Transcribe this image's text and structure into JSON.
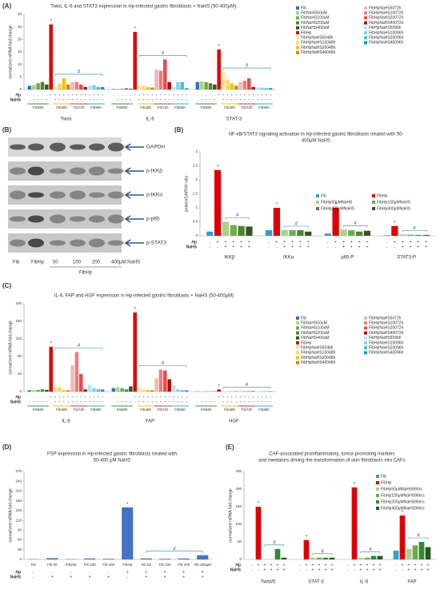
{
  "blot": {
    "panel": "(B)",
    "bands": [
      "GAPDH",
      "p-IKKβ",
      "p-IKKα",
      "p-p65",
      "p-STAT3"
    ],
    "lanes": [
      "Fib",
      "FibHp",
      "50",
      "100",
      "200",
      "400μM NaHS"
    ],
    "group_label": "FibHp"
  },
  "chart_data": [
    {
      "type": "grouped_bar",
      "panel": "(A)",
      "title": "Twist, IL-6 and STAT3 expression in Hp-infected gastric fibroblasts + NaHS (50-400μM).",
      "ylabel": "normalized mRNA fold change",
      "categories": [
        "Twist",
        "IL-6",
        "STAT-3"
      ],
      "ylim": [
        0,
        30
      ],
      "yticks": [
        0,
        5,
        10,
        15,
        20,
        25,
        30
      ],
      "series": [
        {
          "name": "Fib",
          "color": "#2e75b6",
          "values": [
            1.5,
            0.2,
            3
          ]
        },
        {
          "name": "FibNaHS50uM",
          "color": "#a9d18e",
          "values": [
            1.8,
            0.3,
            3.2
          ]
        },
        {
          "name": "FibNaHS100uM",
          "color": "#70ad47",
          "values": [
            2.5,
            0.3,
            3
          ]
        },
        {
          "name": "FibNaHS200uM",
          "color": "#548235",
          "values": [
            3,
            0.5,
            2.5
          ]
        },
        {
          "name": "FibNaHS400uM",
          "color": "#375623",
          "values": [
            2,
            0.3,
            2
          ]
        },
        {
          "name": "FibHp",
          "color": "#e00000",
          "values": [
            26,
            23,
            16
          ]
        },
        {
          "name": "FibHpNaHS5048h",
          "color": "#ffe699",
          "values": [
            1,
            1.5,
            7
          ]
        },
        {
          "name": "FibHpNaHS10048h",
          "color": "#ffd966",
          "values": [
            2.5,
            1.5,
            4
          ]
        },
        {
          "name": "FibHpNaHS20048h",
          "color": "#ffc000",
          "values": [
            4.5,
            1,
            2.5
          ]
        },
        {
          "name": "FibHpNaHS40048h",
          "color": "#bf9000",
          "values": [
            2,
            0.8,
            1.5
          ]
        },
        {
          "name": "FibHpNaHS5072h",
          "color": "#f4b6b6",
          "values": [
            3,
            8,
            3
          ]
        },
        {
          "name": "FibHpNaHS10072h",
          "color": "#ee7b7b",
          "values": [
            3,
            7.5,
            3.5
          ]
        },
        {
          "name": "FibHpNaHS20072h",
          "color": "#e84c4c",
          "values": [
            2,
            12,
            4.5
          ]
        },
        {
          "name": "FibHpNaHS40072h",
          "color": "#c00000",
          "values": [
            1,
            3,
            1
          ]
        },
        {
          "name": "FibHpNaHS5096h",
          "color": "#b4e4f4",
          "values": [
            1.5,
            1,
            0.8
          ]
        },
        {
          "name": "FibHpNaHS10096h",
          "color": "#7fd3f0",
          "values": [
            1.8,
            3,
            0.8
          ]
        },
        {
          "name": "FibHpNaHS20096h",
          "color": "#3fbfe8",
          "values": [
            1,
            3,
            0.5
          ]
        },
        {
          "name": "FibHpNaHS40096h",
          "color": "#00a0d8",
          "values": [
            1,
            0.5,
            0.6
          ]
        }
      ],
      "hp_label": "Hp",
      "nahs_label": "NaHS",
      "hp_signs": [
        "-",
        "-",
        "-",
        "-",
        "-",
        "+",
        "+",
        "+",
        "+",
        "+",
        "+",
        "+",
        "+",
        "+",
        "+",
        "+",
        "+",
        "+"
      ],
      "nahs_signs": [
        "-",
        "+",
        "+",
        "+",
        "+",
        "-",
        "+",
        "+",
        "+",
        "+",
        "+",
        "+",
        "+",
        "+",
        "+",
        "+",
        "+",
        "+"
      ],
      "subgroups": [
        "Fib96h",
        "Fib48h",
        "Fib72h",
        "Fib96h"
      ],
      "star": "*",
      "hash": "#"
    },
    {
      "type": "grouped_bar",
      "panel": "(B)",
      "title": [
        "NF-κB/STAT3 signaling activation in Hp-infected gastric fibroblasts treated with 50-",
        "400μM NaHS"
      ],
      "ylabel": "protein/GAPDH ratio",
      "categories": [
        "IKKβ",
        "IKKα",
        "p65-P",
        "STAT3-P"
      ],
      "ylim": [
        0,
        3
      ],
      "yticks": [
        0,
        0.5,
        1,
        1.5,
        2,
        2.5,
        3
      ],
      "series": [
        {
          "name": "Fib",
          "color": "#2e9fd8",
          "values": [
            0.15,
            0.2,
            0.08,
            0.02
          ]
        },
        {
          "name": "FibHp",
          "color": "#e00000",
          "values": [
            2.35,
            1,
            1,
            0.35
          ]
        },
        {
          "name": "FibHp50μMNaHS",
          "color": "#a9d18e",
          "values": [
            0.5,
            0.2,
            0.22,
            0.05
          ]
        },
        {
          "name": "FibHp100μMNaHS",
          "color": "#70ad47",
          "values": [
            0.38,
            0.2,
            0.2,
            0.04
          ]
        },
        {
          "name": "FibHp200μMNaHS",
          "color": "#548235",
          "values": [
            0.35,
            0.2,
            0.15,
            0.03
          ]
        },
        {
          "name": "FibHp400μMNaHS",
          "color": "#375623",
          "values": [
            0.33,
            0.15,
            0.18,
            0.03
          ]
        }
      ],
      "hp_label": "Hp",
      "nahs_label": "NaHS",
      "hp_signs": [
        "-",
        "+",
        "+",
        "+",
        "+",
        "+"
      ],
      "nahs_signs": [
        "-",
        "-",
        "+",
        "+",
        "+",
        "+"
      ],
      "star": "*",
      "hash": "#"
    },
    {
      "type": "grouped_bar",
      "panel": "(C)",
      "title": "IL-8, FAP and HGF expression in Hp-infected gastric fibroblasts + NaHS (50-400μM)",
      "ylabel": "normalized mRNA fold change",
      "categories": [
        "IL-8",
        "FAP",
        "HGF"
      ],
      "ylim": [
        0,
        200
      ],
      "yticks": [
        0,
        40,
        80,
        120,
        160,
        200
      ],
      "series": [
        {
          "name": "Fib",
          "color": "#2e75b6",
          "values": [
            3,
            8,
            0.5
          ]
        },
        {
          "name": "FibNaHS50uM",
          "color": "#a9d18e",
          "values": [
            3,
            10,
            0.5
          ]
        },
        {
          "name": "FibNaHS100uM",
          "color": "#70ad47",
          "values": [
            4,
            8,
            0.5
          ]
        },
        {
          "name": "FibNaHS200uM",
          "color": "#548235",
          "values": [
            5,
            5,
            0.5
          ]
        },
        {
          "name": "FibNaHS400uM",
          "color": "#375623",
          "values": [
            4,
            12,
            0.5
          ]
        },
        {
          "name": "FibHp",
          "color": "#e00000",
          "values": [
            102,
            180,
            5
          ]
        },
        {
          "name": "FibHpNaHS5048h",
          "color": "#ffe699",
          "values": [
            12,
            8,
            1
          ]
        },
        {
          "name": "FibHpNaHS10048h",
          "color": "#ffd966",
          "values": [
            10,
            5,
            1
          ]
        },
        {
          "name": "FibHpNaHS20048h",
          "color": "#ffc000",
          "values": [
            3,
            4,
            1
          ]
        },
        {
          "name": "FibHpNaHS40048h",
          "color": "#bf9000",
          "values": [
            3,
            3,
            1
          ]
        },
        {
          "name": "FibHpNaHS5072h",
          "color": "#f4b6b6",
          "values": [
            60,
            30,
            1
          ]
        },
        {
          "name": "FibHpNaHS10072h",
          "color": "#ee7b7b",
          "values": [
            90,
            50,
            1
          ]
        },
        {
          "name": "FibHpNaHS20072h",
          "color": "#e84c4c",
          "values": [
            40,
            48,
            1
          ]
        },
        {
          "name": "FibHpNaHS40072h",
          "color": "#c00000",
          "values": [
            5,
            28,
            1
          ]
        },
        {
          "name": "FibHpNaHS5096h",
          "color": "#b4e4f4",
          "values": [
            15,
            15,
            1
          ]
        },
        {
          "name": "FibHpNaHS10096h",
          "color": "#7fd3f0",
          "values": [
            8,
            5,
            1
          ]
        },
        {
          "name": "FibHpNaHS20096h",
          "color": "#3fbfe8",
          "values": [
            5,
            3,
            1
          ]
        },
        {
          "name": "FibHpNaHS40096h",
          "color": "#00a0d8",
          "values": [
            5,
            3,
            1
          ]
        }
      ],
      "hp_label": "Hp",
      "nahs_label": "NaHS",
      "hp_signs": [
        "-",
        "-",
        "-",
        "-",
        "-",
        "+",
        "+",
        "+",
        "+",
        "+",
        "+",
        "+",
        "+",
        "+",
        "+",
        "+",
        "+",
        "+"
      ],
      "nahs_signs": [
        "-",
        "+",
        "+",
        "+",
        "+",
        "-",
        "+",
        "+",
        "+",
        "+",
        "+",
        "+",
        "+",
        "+",
        "+",
        "+",
        "+",
        "+"
      ],
      "subgroups": [
        "Fib96h",
        "Fib48h",
        "Fib72h",
        "Fib96h"
      ],
      "star": "*",
      "hash": "#"
    },
    {
      "type": "bar",
      "panel": "(D)",
      "title": [
        "FSP expression in Hp-infected gastric fibroblasts treated with",
        "50-400 μM NaHS"
      ],
      "ylabel": "normalized mRNA fold change",
      "categories": [
        "Fib",
        "Fib 50",
        "Fib100",
        "Fib 200",
        "Fib 400",
        "FibHp",
        "Fib 50",
        "Fib 100",
        "Fib 200",
        "Fib 400μM"
      ],
      "values": [
        1,
        4,
        1,
        3,
        2,
        160,
        3,
        2,
        3,
        13
      ],
      "color": "#4472c4",
      "ylim": [
        0,
        270
      ],
      "yticks": [
        0,
        30,
        60,
        90,
        120,
        150,
        180,
        210,
        240,
        270
      ],
      "hp_label": "Hp",
      "nahs_label": "NaHS",
      "hp_signs": [
        "-",
        "-",
        "-",
        "-",
        "-",
        "+",
        "+",
        "+",
        "+",
        "+"
      ],
      "nahs_signs": [
        "-",
        "+",
        "+",
        "+",
        "+",
        "-",
        "+",
        "+",
        "+",
        "+"
      ],
      "star": "*",
      "hash": "#"
    },
    {
      "type": "grouped_bar",
      "panel": "(E)",
      "title": [
        "CAF-associated proinflammatory, tumor-promoting markers",
        "and mediators driving the transformation of skin fibroblasts into CAFs"
      ],
      "ylabel": "normalized mRNA fold change",
      "categories": [
        "Twist/5",
        "STAT-3",
        "IL-6",
        "FAP"
      ],
      "ylim": [
        0,
        250
      ],
      "yticks": [
        0,
        50,
        100,
        150,
        200,
        250
      ],
      "series": [
        {
          "name": "Fib",
          "color": "#2e9fd8",
          "values": [
            0,
            0,
            0,
            25
          ]
        },
        {
          "name": "FibHp",
          "color": "#e00000",
          "values": [
            150,
            55,
            205,
            125
          ]
        },
        {
          "name": "FibHp50μMNaHS96hrs",
          "color": "#a9d18e",
          "values": [
            0,
            5,
            5,
            30
          ]
        },
        {
          "name": "FibHp100μMNaHS96hrs",
          "color": "#70ad47",
          "values": [
            0,
            5,
            5,
            40
          ]
        },
        {
          "name": "FibHp200μMNaHS96hrs",
          "color": "#2e8b2e",
          "values": [
            30,
            5,
            10,
            50
          ]
        },
        {
          "name": "FibHp400μMNaHS96hrs",
          "color": "#1e5b1e",
          "values": [
            5,
            5,
            10,
            35
          ]
        }
      ],
      "hp_label": "Hp",
      "nahs_label": "NaHS",
      "hp_signs": [
        "-",
        "+",
        "+",
        "+",
        "+",
        "+"
      ],
      "nahs_signs": [
        "-",
        "-",
        "+",
        "+",
        "+",
        "+"
      ],
      "star": "*",
      "hash": "#"
    }
  ]
}
